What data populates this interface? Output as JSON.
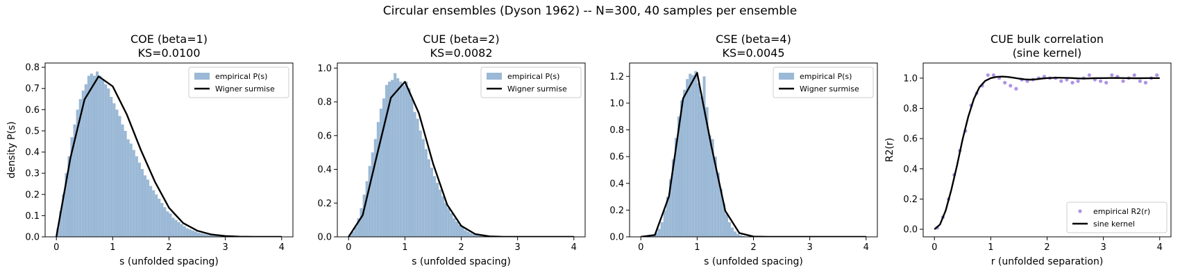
{
  "figure": {
    "suptitle": "Circular ensembles (Dyson 1962) -- N=300, 40 samples per ensemble"
  },
  "chart_data": [
    {
      "type": "bar",
      "title_line1": "COE (beta=1)",
      "title_line2": "KS=0.0100",
      "xlabel": "s (unfolded spacing)",
      "ylabel": "density P(s)",
      "xlim": [
        -0.2,
        4.2
      ],
      "ylim": [
        0,
        0.82
      ],
      "xticks": [
        "0",
        "1",
        "2",
        "3",
        "4"
      ],
      "yticks": [
        "0.0",
        "0.1",
        "0.2",
        "0.3",
        "0.4",
        "0.5",
        "0.6",
        "0.7",
        "0.8"
      ],
      "grid": false,
      "legend_position": "top-right",
      "hist_color": "#9bb9d6",
      "curve_color": "#000000",
      "beta": 1,
      "bin_width": 0.05,
      "bin_start": 0,
      "histogram_values": [
        0.04,
        0.12,
        0.2,
        0.3,
        0.38,
        0.47,
        0.53,
        0.6,
        0.65,
        0.69,
        0.72,
        0.76,
        0.77,
        0.76,
        0.78,
        0.76,
        0.74,
        0.72,
        0.7,
        0.66,
        0.63,
        0.6,
        0.57,
        0.53,
        0.5,
        0.46,
        0.44,
        0.41,
        0.38,
        0.35,
        0.32,
        0.29,
        0.27,
        0.24,
        0.22,
        0.2,
        0.18,
        0.16,
        0.14,
        0.12,
        0.11,
        0.09,
        0.08,
        0.07,
        0.06,
        0.05,
        0.04,
        0.035,
        0.03,
        0.025,
        0.02,
        0.017,
        0.014,
        0.011,
        0.009,
        0.007,
        0.005,
        0.004,
        0.003,
        0.002
      ],
      "curve_x": [
        0,
        0.25,
        0.5,
        0.75,
        1,
        1.25,
        1.5,
        1.75,
        2,
        2.25,
        2.5,
        2.75,
        3,
        3.25,
        3.5,
        3.75,
        4
      ],
      "curve_y": [
        0,
        0.373,
        0.648,
        0.757,
        0.71,
        0.578,
        0.41,
        0.26,
        0.137,
        0.065,
        0.029,
        0.011,
        0.004,
        0.001,
        0,
        0,
        0
      ],
      "legend": [
        "empirical P(s)",
        "Wigner surmise"
      ]
    },
    {
      "type": "bar",
      "title_line1": "CUE (beta=2)",
      "title_line2": "KS=0.0082",
      "xlabel": "s (unfolded spacing)",
      "ylabel": "",
      "xlim": [
        -0.2,
        4.2
      ],
      "ylim": [
        0,
        1.03
      ],
      "xticks": [
        "0",
        "1",
        "2",
        "3",
        "4"
      ],
      "yticks": [
        "0.0",
        "0.2",
        "0.4",
        "0.6",
        "0.8",
        "1.0"
      ],
      "grid": false,
      "legend_position": "top-right",
      "hist_color": "#9bb9d6",
      "curve_color": "#000000",
      "beta": 2,
      "bin_width": 0.05,
      "bin_start": 0,
      "histogram_values": [
        0.01,
        0.03,
        0.06,
        0.11,
        0.17,
        0.25,
        0.33,
        0.42,
        0.5,
        0.58,
        0.68,
        0.76,
        0.82,
        0.9,
        0.92,
        0.93,
        0.97,
        0.94,
        0.92,
        0.9,
        0.92,
        0.88,
        0.82,
        0.74,
        0.7,
        0.63,
        0.58,
        0.52,
        0.46,
        0.41,
        0.36,
        0.32,
        0.28,
        0.24,
        0.2,
        0.17,
        0.14,
        0.11,
        0.09,
        0.07,
        0.055,
        0.04,
        0.03,
        0.022,
        0.015,
        0.01,
        0.007,
        0.005,
        0.003,
        0.002
      ],
      "curve_x": [
        0,
        0.25,
        0.5,
        0.75,
        1,
        1.25,
        1.5,
        1.75,
        2,
        2.25,
        2.5,
        2.75,
        3,
        3.25,
        3.5,
        3.75,
        4
      ],
      "curve_y": [
        0,
        0.128,
        0.479,
        0.824,
        0.919,
        0.731,
        0.434,
        0.191,
        0.065,
        0.016,
        0.003,
        0,
        0,
        0,
        0,
        0,
        0
      ],
      "legend": [
        "empirical P(s)",
        "Wigner surmise"
      ]
    },
    {
      "type": "bar",
      "title_line1": "CSE (beta=4)",
      "title_line2": "KS=0.0045",
      "xlabel": "s (unfolded spacing)",
      "ylabel": "",
      "xlim": [
        -0.2,
        4.2
      ],
      "ylim": [
        0,
        1.3
      ],
      "xticks": [
        "0",
        "1",
        "2",
        "3",
        "4"
      ],
      "yticks": [
        "0.0",
        "0.2",
        "0.4",
        "0.6",
        "0.8",
        "1.0",
        "1.2"
      ],
      "grid": false,
      "legend_position": "top-right",
      "hist_color": "#9bb9d6",
      "curve_color": "#000000",
      "beta": 4,
      "bin_width": 0.05,
      "bin_start": 0,
      "histogram_values": [
        0,
        0,
        0.002,
        0.005,
        0.012,
        0.03,
        0.06,
        0.11,
        0.2,
        0.3,
        0.43,
        0.58,
        0.74,
        0.9,
        1.02,
        1.1,
        1.18,
        1.22,
        1.21,
        1.24,
        1.15,
        1.05,
        1.2,
        0.97,
        0.76,
        0.73,
        0.6,
        0.48,
        0.36,
        0.25,
        0.17,
        0.11,
        0.07,
        0.04,
        0.022,
        0.012,
        0.006,
        0.003,
        0.001,
        0
      ],
      "curve_x": [
        0,
        0.25,
        0.5,
        0.75,
        1,
        1.25,
        1.5,
        1.75,
        2,
        2.25,
        2.5,
        2.75,
        3,
        3.25,
        3.5,
        3.75,
        4
      ],
      "curve_y": [
        0,
        0.014,
        0.303,
        1.035,
        1.226,
        0.685,
        0.194,
        0.028,
        0.002,
        0,
        0,
        0,
        0,
        0,
        0,
        0,
        0
      ],
      "legend": [
        "empirical P(s)",
        "Wigner surmise"
      ]
    },
    {
      "type": "scatter",
      "title_line1": "CUE bulk correlation",
      "title_line2": "(sine kernel)",
      "xlabel": "r (unfolded separation)",
      "ylabel": "R2(r)",
      "xlim": [
        -0.2,
        4.2
      ],
      "ylim": [
        -0.05,
        1.1
      ],
      "xticks": [
        "0",
        "1",
        "2",
        "3",
        "4"
      ],
      "yticks": [
        "0.0",
        "0.2",
        "0.4",
        "0.6",
        "0.8",
        "1.0"
      ],
      "grid": false,
      "legend_position": "bottom-right",
      "scatter_color": "#9370db",
      "curve_color": "#000000",
      "points_x": [
        0.05,
        0.15,
        0.25,
        0.35,
        0.45,
        0.55,
        0.65,
        0.75,
        0.85,
        0.95,
        1.05,
        1.15,
        1.25,
        1.35,
        1.45,
        1.55,
        1.65,
        1.75,
        1.85,
        1.95,
        2.05,
        2.15,
        2.25,
        2.35,
        2.45,
        2.55,
        2.65,
        2.75,
        2.85,
        2.95,
        3.05,
        3.15,
        3.25,
        3.35,
        3.45,
        3.55,
        3.65,
        3.75,
        3.85,
        3.95
      ],
      "points_y": [
        0.01,
        0.08,
        0.2,
        0.36,
        0.52,
        0.65,
        0.82,
        0.9,
        0.95,
        1.02,
        1.02,
        1.0,
        0.97,
        0.95,
        0.93,
        0.99,
        0.98,
        0.99,
        1.0,
        1.01,
        1.0,
        1.0,
        0.98,
        0.99,
        0.97,
        0.98,
        1.0,
        1.02,
        0.99,
        0.98,
        0.97,
        1.02,
        1.01,
        0.98,
        1.0,
        1.02,
        0.98,
        0.97,
        1.0,
        1.02
      ],
      "curve_x": [
        0,
        0.1,
        0.2,
        0.3,
        0.4,
        0.5,
        0.6,
        0.7,
        0.8,
        0.9,
        1,
        1.1,
        1.2,
        1.3,
        1.4,
        1.5,
        1.6,
        1.7,
        1.8,
        1.9,
        2,
        2.1,
        2.2,
        2.3,
        2.4,
        2.5,
        2.6,
        2.7,
        2.8,
        2.9,
        3,
        3.2,
        3.4,
        3.6,
        3.8,
        4
      ],
      "curve_y": [
        0,
        0.032,
        0.125,
        0.262,
        0.421,
        0.595,
        0.744,
        0.862,
        0.94,
        0.982,
        1,
        1.008,
        1.01,
        1.008,
        1.003,
        0.997,
        0.992,
        0.99,
        0.992,
        0.997,
        1,
        1.002,
        1.003,
        1.002,
        1.001,
        0.999,
        0.998,
        0.998,
        0.999,
        1,
        1,
        1.001,
        1,
        0.999,
        1,
        1
      ],
      "legend": [
        "empirical R2(r)",
        "sine kernel"
      ]
    }
  ]
}
